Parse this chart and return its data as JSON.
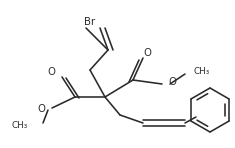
{
  "bg_color": "#ffffff",
  "line_color": "#2a2a2a",
  "line_width": 1.15,
  "font_size": 6.8,
  "figsize": [
    2.35,
    1.48
  ],
  "dpi": 100,
  "xlim": [
    0,
    235
  ],
  "ylim": [
    0,
    148
  ]
}
